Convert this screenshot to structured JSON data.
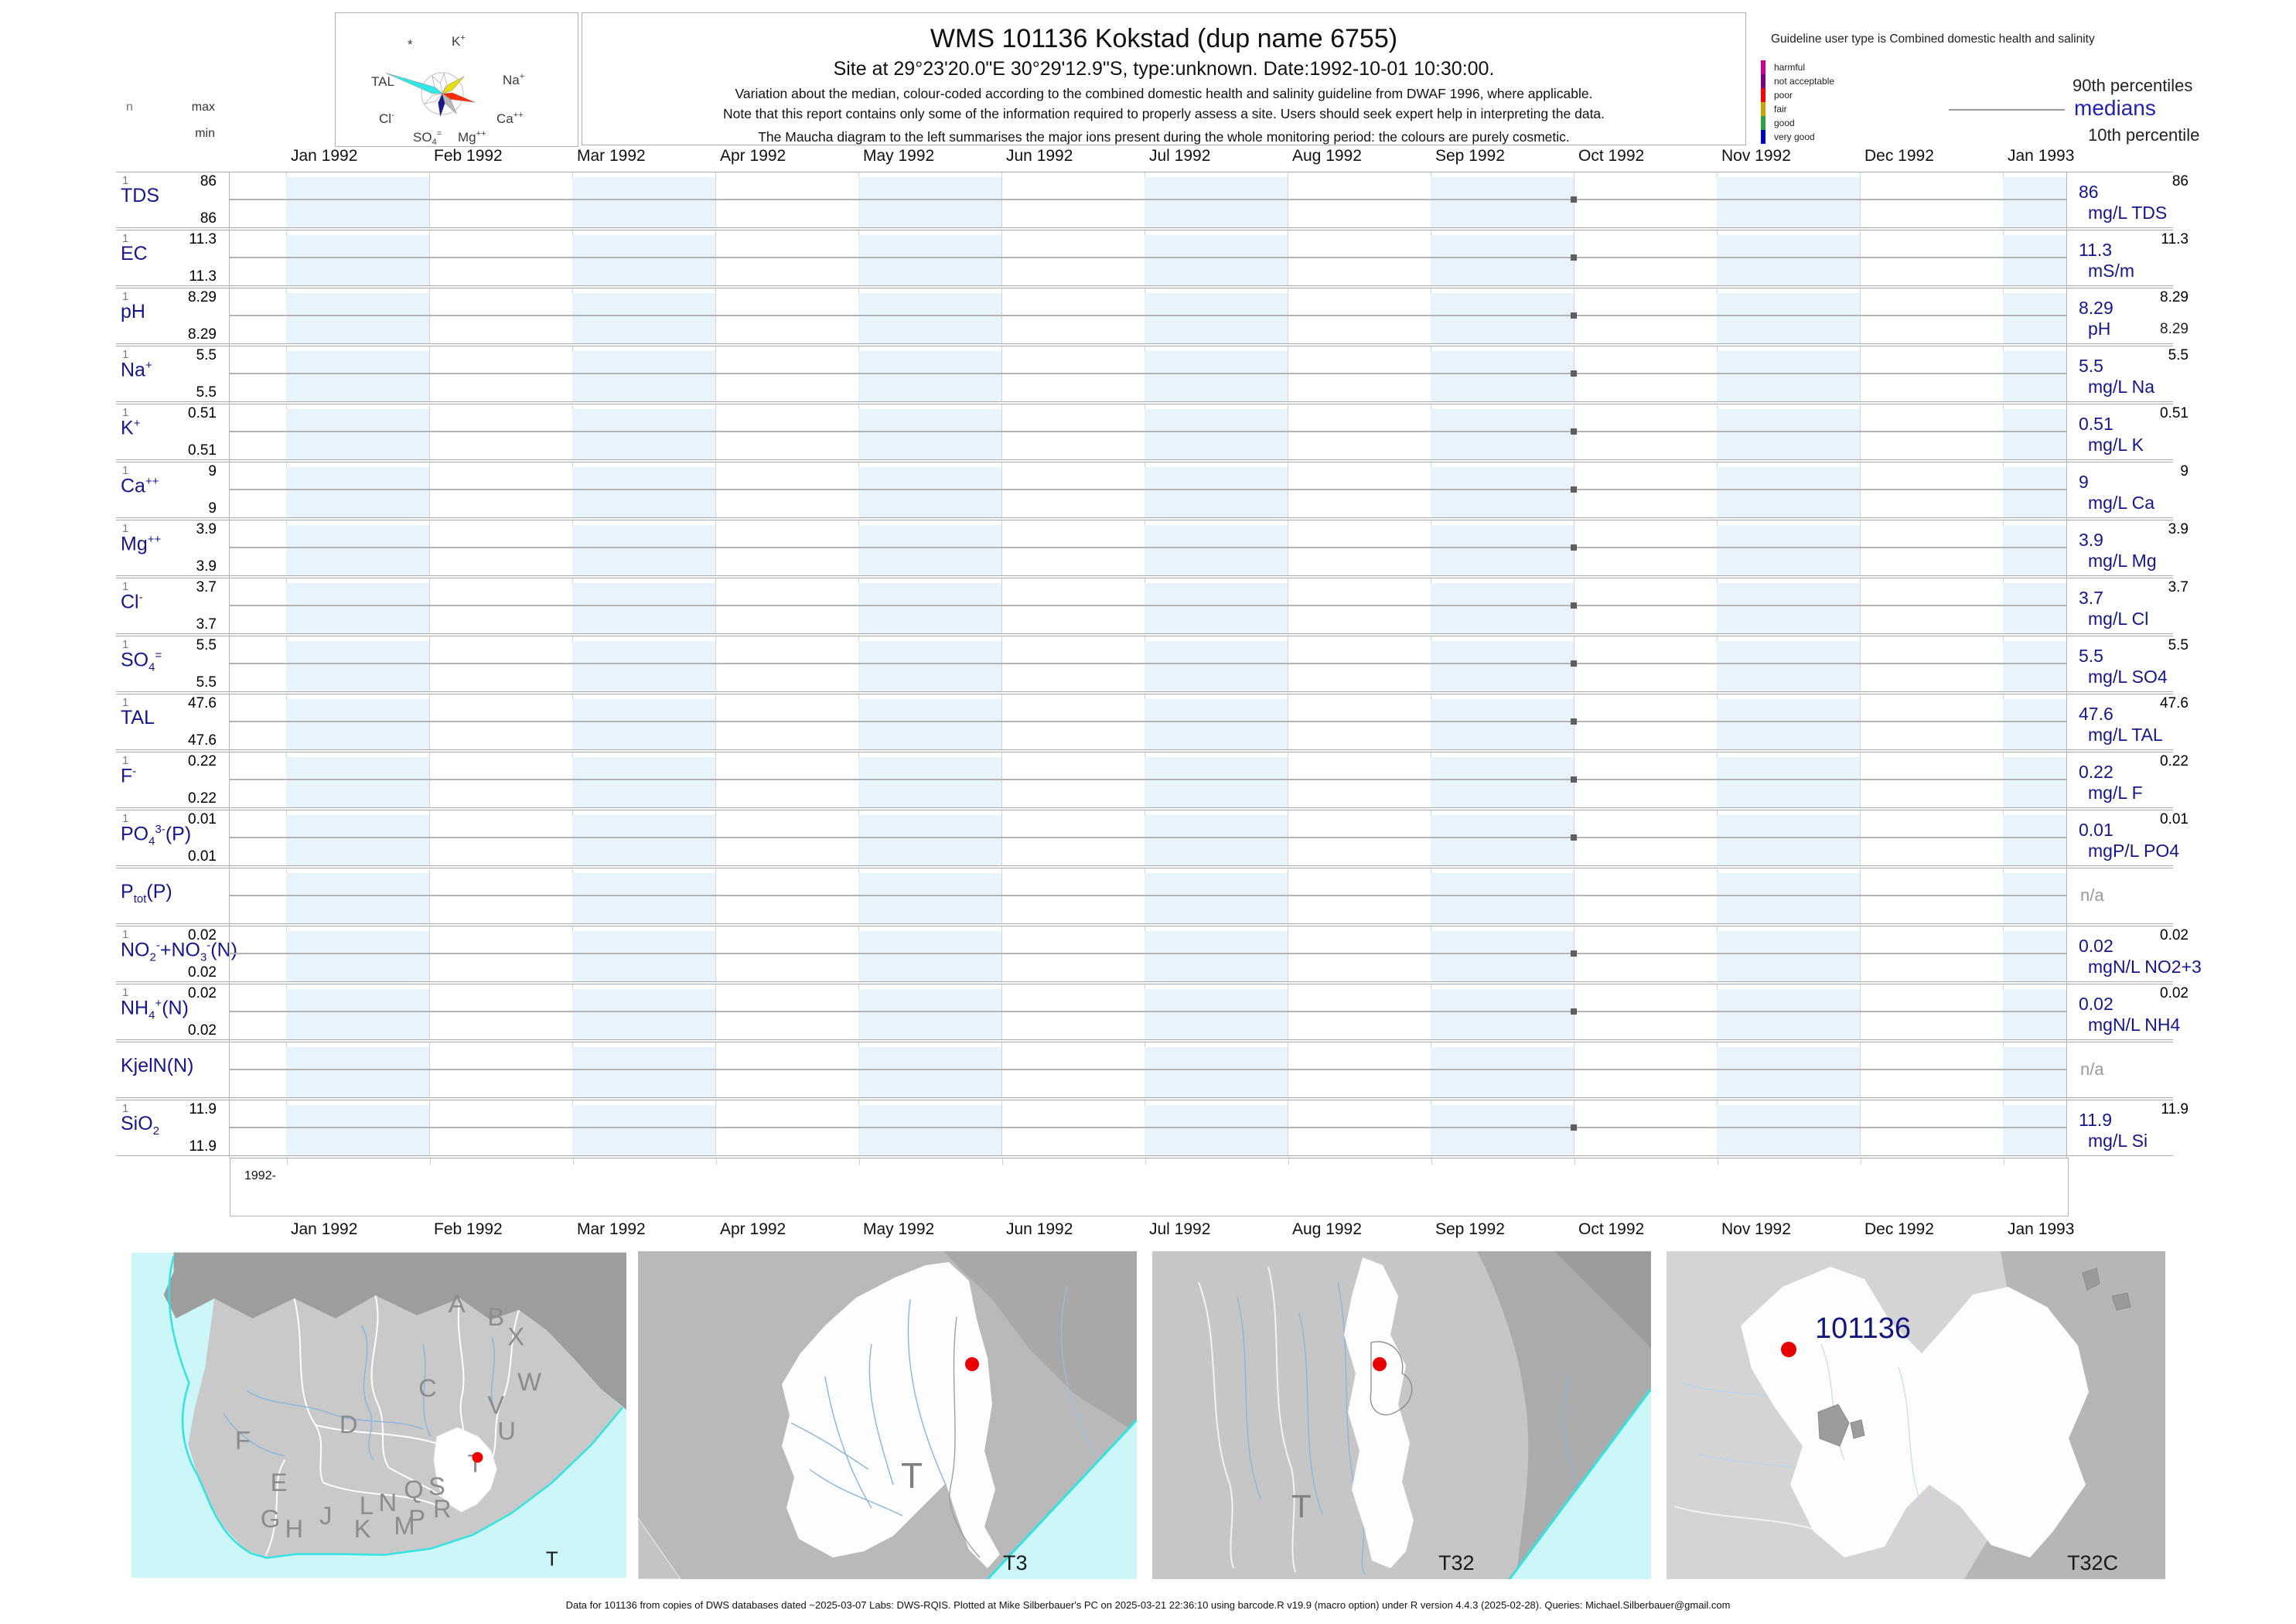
{
  "header": {
    "title": "WMS 101136  Kokstad (dup name 6755)",
    "subtitle": "Site at 29°23'20.0\"E 30°29'12.9\"S, type:unknown. Date:1992-10-01 10:30:00.",
    "note1": "Variation about the median,  colour-coded according to the combined domestic health and salinity guideline from DWAF 1996, where applicable.",
    "note2": "Note that this report contains only some of the information required to properly assess a site. Users should seek expert help in interpreting the data.",
    "note3": "The Maucha diagram to the left summarises the major ions present during the whole monitoring period: the colours are purely cosmetic."
  },
  "guideline": {
    "title": "Guideline user type is Combined domestic health and salinity",
    "classes": [
      {
        "label": "harmful",
        "color": "#cc0099"
      },
      {
        "label": "not acceptable",
        "color": "#7d007d"
      },
      {
        "label": "poor",
        "color": "#ff0000"
      },
      {
        "label": "fair",
        "color": "#c9a400"
      },
      {
        "label": "good",
        "color": "#2f9e44"
      },
      {
        "label": "very good",
        "color": "#0000cc"
      }
    ],
    "p90_label": "90th percentiles",
    "median_label": "medians",
    "p10_label": "10th percentile"
  },
  "maucha": {
    "ions": [
      "*",
      "K+",
      "TAL",
      "Na+",
      "Cl-",
      "Ca++",
      "SO4=",
      "Mg++"
    ]
  },
  "left_header": {
    "n": "n",
    "max": "max",
    "min": "min"
  },
  "axis": {
    "months": [
      "Jan 1992",
      "Feb 1992",
      "Mar 1992",
      "Apr 1992",
      "May 1992",
      "Jun 1992",
      "Jul 1992",
      "Aug 1992",
      "Sep 1992",
      "Oct 1992",
      "Nov 1992",
      "Dec 1992",
      "Jan 1993"
    ],
    "era": "1992-"
  },
  "parameters": [
    {
      "name": "TDS",
      "label_html": "TDS",
      "n": "1",
      "max": "86",
      "min": "86",
      "p90": "86",
      "median": "86",
      "unit": "mg/L TDS",
      "point": true
    },
    {
      "name": "EC",
      "label_html": "EC",
      "n": "1",
      "max": "11.3",
      "min": "11.3",
      "p90": "11.3",
      "median": "11.3",
      "unit": "mS/m",
      "point": true
    },
    {
      "name": "pH",
      "label_html": "pH",
      "n": "1",
      "max": "8.29",
      "min": "8.29",
      "p90": "8.29",
      "median": "8.29",
      "p10": "8.29",
      "unit": "pH",
      "point": true
    },
    {
      "name": "Na",
      "label_html": "Na<sup>+</sup>",
      "n": "1",
      "max": "5.5",
      "min": "5.5",
      "p90": "5.5",
      "median": "5.5",
      "unit": "mg/L Na",
      "point": true
    },
    {
      "name": "K",
      "label_html": "K<sup>+</sup>",
      "n": "1",
      "max": "0.51",
      "min": "0.51",
      "p90": "0.51",
      "median": "0.51",
      "unit": "mg/L K",
      "point": true
    },
    {
      "name": "Ca",
      "label_html": "Ca<sup>++</sup>",
      "n": "1",
      "max": "9",
      "min": "9",
      "p90": "9",
      "median": "9",
      "unit": "mg/L Ca",
      "point": true
    },
    {
      "name": "Mg",
      "label_html": "Mg<sup>++</sup>",
      "n": "1",
      "max": "3.9",
      "min": "3.9",
      "p90": "3.9",
      "median": "3.9",
      "unit": "mg/L Mg",
      "point": true
    },
    {
      "name": "Cl",
      "label_html": "Cl<sup>-</sup>",
      "n": "1",
      "max": "3.7",
      "min": "3.7",
      "p90": "3.7",
      "median": "3.7",
      "unit": "mg/L Cl",
      "point": true
    },
    {
      "name": "SO4",
      "label_html": "SO<sub>4</sub><sup>=</sup>",
      "n": "1",
      "max": "5.5",
      "min": "5.5",
      "p90": "5.5",
      "median": "5.5",
      "unit": "mg/L SO4",
      "point": true
    },
    {
      "name": "TAL",
      "label_html": "TAL",
      "n": "1",
      "max": "47.6",
      "min": "47.6",
      "p90": "47.6",
      "median": "47.6",
      "unit": "mg/L TAL",
      "point": true
    },
    {
      "name": "F",
      "label_html": "F<sup>-</sup>",
      "n": "1",
      "max": "0.22",
      "min": "0.22",
      "p90": "0.22",
      "median": "0.22",
      "unit": "mg/L F",
      "point": true
    },
    {
      "name": "PO4",
      "label_html": "PO<sub>4</sub><sup>3-</sup>(P)",
      "n": "1",
      "max": "0.01",
      "min": "0.01",
      "p90": "0.01",
      "median": "0.01",
      "unit": "mgP/L PO4",
      "point": true
    },
    {
      "name": "Ptot",
      "label_html": "P<sub>tot</sub>(P)",
      "na": "n/a",
      "point": false
    },
    {
      "name": "NO2NO3",
      "label_html": "NO<sub>2</sub><sup>-</sup>+NO<sub>3</sub><sup>-</sup>(N)",
      "n": "1",
      "max": "0.02",
      "min": "0.02",
      "p90": "0.02",
      "median": "0.02",
      "unit": "mgN/L NO2+3",
      "point": true
    },
    {
      "name": "NH4",
      "label_html": "NH<sub>4</sub><sup>+</sup>(N)",
      "n": "1",
      "max": "0.02",
      "min": "0.02",
      "p90": "0.02",
      "median": "0.02",
      "unit": "mgN/L NH4",
      "point": true
    },
    {
      "name": "KjelN",
      "label_html": "KjelN(N)",
      "na": "n/a",
      "point": false
    },
    {
      "name": "SiO2",
      "label_html": "SiO<sub>2</sub>",
      "n": "1",
      "max": "11.9",
      "min": "11.9",
      "p90": "11.9",
      "median": "11.9",
      "unit": "mg/L Si",
      "point": true
    }
  ],
  "chart_data": {
    "type": "scatter",
    "title": "WMS 101136 Kokstad (dup name 6755)",
    "x_axis": {
      "start": "Jan 1992",
      "end": "Jan 1993",
      "grid": "monthly stripes"
    },
    "sample_date": "1992-10-01",
    "n_samples": 1,
    "legend_position": "top-right",
    "series": [
      {
        "name": "TDS",
        "unit": "mg/L",
        "x": [
          "1992-10-01"
        ],
        "values": [
          86
        ],
        "n": 1,
        "min": 86,
        "max": 86,
        "median": 86,
        "p90": 86
      },
      {
        "name": "EC",
        "unit": "mS/m",
        "x": [
          "1992-10-01"
        ],
        "values": [
          11.3
        ],
        "n": 1,
        "min": 11.3,
        "max": 11.3,
        "median": 11.3,
        "p90": 11.3
      },
      {
        "name": "pH",
        "unit": "pH",
        "x": [
          "1992-10-01"
        ],
        "values": [
          8.29
        ],
        "n": 1,
        "min": 8.29,
        "max": 8.29,
        "median": 8.29,
        "p90": 8.29,
        "p10": 8.29
      },
      {
        "name": "Na",
        "unit": "mg/L",
        "x": [
          "1992-10-01"
        ],
        "values": [
          5.5
        ],
        "n": 1,
        "min": 5.5,
        "max": 5.5,
        "median": 5.5,
        "p90": 5.5
      },
      {
        "name": "K",
        "unit": "mg/L",
        "x": [
          "1992-10-01"
        ],
        "values": [
          0.51
        ],
        "n": 1,
        "min": 0.51,
        "max": 0.51,
        "median": 0.51,
        "p90": 0.51
      },
      {
        "name": "Ca",
        "unit": "mg/L",
        "x": [
          "1992-10-01"
        ],
        "values": [
          9
        ],
        "n": 1,
        "min": 9,
        "max": 9,
        "median": 9,
        "p90": 9
      },
      {
        "name": "Mg",
        "unit": "mg/L",
        "x": [
          "1992-10-01"
        ],
        "values": [
          3.9
        ],
        "n": 1,
        "min": 3.9,
        "max": 3.9,
        "median": 3.9,
        "p90": 3.9
      },
      {
        "name": "Cl",
        "unit": "mg/L",
        "x": [
          "1992-10-01"
        ],
        "values": [
          3.7
        ],
        "n": 1,
        "min": 3.7,
        "max": 3.7,
        "median": 3.7,
        "p90": 3.7
      },
      {
        "name": "SO4",
        "unit": "mg/L",
        "x": [
          "1992-10-01"
        ],
        "values": [
          5.5
        ],
        "n": 1,
        "min": 5.5,
        "max": 5.5,
        "median": 5.5,
        "p90": 5.5
      },
      {
        "name": "TAL",
        "unit": "mg/L",
        "x": [
          "1992-10-01"
        ],
        "values": [
          47.6
        ],
        "n": 1,
        "min": 47.6,
        "max": 47.6,
        "median": 47.6,
        "p90": 47.6
      },
      {
        "name": "F",
        "unit": "mg/L",
        "x": [
          "1992-10-01"
        ],
        "values": [
          0.22
        ],
        "n": 1,
        "min": 0.22,
        "max": 0.22,
        "median": 0.22,
        "p90": 0.22
      },
      {
        "name": "PO4",
        "unit": "mgP/L",
        "x": [
          "1992-10-01"
        ],
        "values": [
          0.01
        ],
        "n": 1,
        "min": 0.01,
        "max": 0.01,
        "median": 0.01,
        "p90": 0.01
      },
      {
        "name": "Ptot",
        "unit": null,
        "x": [],
        "values": [],
        "note": "n/a"
      },
      {
        "name": "NO2+NO3",
        "unit": "mgN/L",
        "x": [
          "1992-10-01"
        ],
        "values": [
          0.02
        ],
        "n": 1,
        "min": 0.02,
        "max": 0.02,
        "median": 0.02,
        "p90": 0.02
      },
      {
        "name": "NH4",
        "unit": "mgN/L",
        "x": [
          "1992-10-01"
        ],
        "values": [
          0.02
        ],
        "n": 1,
        "min": 0.02,
        "max": 0.02,
        "median": 0.02,
        "p90": 0.02
      },
      {
        "name": "KjelN",
        "unit": null,
        "x": [],
        "values": [],
        "note": "n/a"
      },
      {
        "name": "SiO2",
        "unit": "mg/L",
        "x": [
          "1992-10-01"
        ],
        "values": [
          11.9
        ],
        "n": 1,
        "min": 11.9,
        "max": 11.9,
        "median": 11.9,
        "p90": 11.9
      }
    ]
  },
  "maps": {
    "panel_labels": [
      "T",
      "T3",
      "T32",
      "T32C"
    ],
    "region_letters": [
      "A",
      "B",
      "X",
      "C",
      "W",
      "V",
      "U",
      "D",
      "F",
      "T",
      "E",
      "G",
      "H",
      "J",
      "K",
      "L",
      "N",
      "M",
      "P",
      "Q",
      "R",
      "S"
    ],
    "site_id": "101136"
  },
  "footer": {
    "text": "Data for 101136 from copies of DWS databases dated ~2025-03-07 Labs: DWS-RQIS. Plotted at Mike Silberbauer's PC on 2025-03-21 22:36:10 using barcode.R v19.9 (macro option) under R version 4.4.3 (2025-02-28). Queries: Michael.Silberbauer@gmail.com"
  }
}
